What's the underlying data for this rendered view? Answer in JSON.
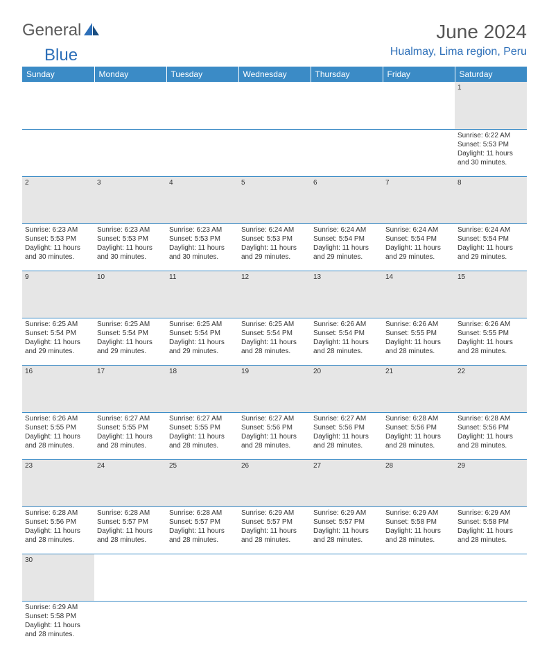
{
  "brand": {
    "part1": "General",
    "part2": "Blue"
  },
  "title": "June 2024",
  "location": "Hualmay, Lima region, Peru",
  "colors": {
    "header_bg": "#3b8bc6",
    "header_text": "#ffffff",
    "brand_gray": "#5a5a5a",
    "brand_blue": "#2d6fb8",
    "daynum_bg": "#e6e6e6",
    "border": "#3b8bc6",
    "text": "#333333"
  },
  "weekdays": [
    "Sunday",
    "Monday",
    "Tuesday",
    "Wednesday",
    "Thursday",
    "Friday",
    "Saturday"
  ],
  "weeks": [
    [
      null,
      null,
      null,
      null,
      null,
      null,
      {
        "n": "1",
        "sunrise": "Sunrise: 6:22 AM",
        "sunset": "Sunset: 5:53 PM",
        "day1": "Daylight: 11 hours",
        "day2": "and 30 minutes."
      }
    ],
    [
      {
        "n": "2",
        "sunrise": "Sunrise: 6:23 AM",
        "sunset": "Sunset: 5:53 PM",
        "day1": "Daylight: 11 hours",
        "day2": "and 30 minutes."
      },
      {
        "n": "3",
        "sunrise": "Sunrise: 6:23 AM",
        "sunset": "Sunset: 5:53 PM",
        "day1": "Daylight: 11 hours",
        "day2": "and 30 minutes."
      },
      {
        "n": "4",
        "sunrise": "Sunrise: 6:23 AM",
        "sunset": "Sunset: 5:53 PM",
        "day1": "Daylight: 11 hours",
        "day2": "and 30 minutes."
      },
      {
        "n": "5",
        "sunrise": "Sunrise: 6:24 AM",
        "sunset": "Sunset: 5:53 PM",
        "day1": "Daylight: 11 hours",
        "day2": "and 29 minutes."
      },
      {
        "n": "6",
        "sunrise": "Sunrise: 6:24 AM",
        "sunset": "Sunset: 5:54 PM",
        "day1": "Daylight: 11 hours",
        "day2": "and 29 minutes."
      },
      {
        "n": "7",
        "sunrise": "Sunrise: 6:24 AM",
        "sunset": "Sunset: 5:54 PM",
        "day1": "Daylight: 11 hours",
        "day2": "and 29 minutes."
      },
      {
        "n": "8",
        "sunrise": "Sunrise: 6:24 AM",
        "sunset": "Sunset: 5:54 PM",
        "day1": "Daylight: 11 hours",
        "day2": "and 29 minutes."
      }
    ],
    [
      {
        "n": "9",
        "sunrise": "Sunrise: 6:25 AM",
        "sunset": "Sunset: 5:54 PM",
        "day1": "Daylight: 11 hours",
        "day2": "and 29 minutes."
      },
      {
        "n": "10",
        "sunrise": "Sunrise: 6:25 AM",
        "sunset": "Sunset: 5:54 PM",
        "day1": "Daylight: 11 hours",
        "day2": "and 29 minutes."
      },
      {
        "n": "11",
        "sunrise": "Sunrise: 6:25 AM",
        "sunset": "Sunset: 5:54 PM",
        "day1": "Daylight: 11 hours",
        "day2": "and 29 minutes."
      },
      {
        "n": "12",
        "sunrise": "Sunrise: 6:25 AM",
        "sunset": "Sunset: 5:54 PM",
        "day1": "Daylight: 11 hours",
        "day2": "and 28 minutes."
      },
      {
        "n": "13",
        "sunrise": "Sunrise: 6:26 AM",
        "sunset": "Sunset: 5:54 PM",
        "day1": "Daylight: 11 hours",
        "day2": "and 28 minutes."
      },
      {
        "n": "14",
        "sunrise": "Sunrise: 6:26 AM",
        "sunset": "Sunset: 5:55 PM",
        "day1": "Daylight: 11 hours",
        "day2": "and 28 minutes."
      },
      {
        "n": "15",
        "sunrise": "Sunrise: 6:26 AM",
        "sunset": "Sunset: 5:55 PM",
        "day1": "Daylight: 11 hours",
        "day2": "and 28 minutes."
      }
    ],
    [
      {
        "n": "16",
        "sunrise": "Sunrise: 6:26 AM",
        "sunset": "Sunset: 5:55 PM",
        "day1": "Daylight: 11 hours",
        "day2": "and 28 minutes."
      },
      {
        "n": "17",
        "sunrise": "Sunrise: 6:27 AM",
        "sunset": "Sunset: 5:55 PM",
        "day1": "Daylight: 11 hours",
        "day2": "and 28 minutes."
      },
      {
        "n": "18",
        "sunrise": "Sunrise: 6:27 AM",
        "sunset": "Sunset: 5:55 PM",
        "day1": "Daylight: 11 hours",
        "day2": "and 28 minutes."
      },
      {
        "n": "19",
        "sunrise": "Sunrise: 6:27 AM",
        "sunset": "Sunset: 5:56 PM",
        "day1": "Daylight: 11 hours",
        "day2": "and 28 minutes."
      },
      {
        "n": "20",
        "sunrise": "Sunrise: 6:27 AM",
        "sunset": "Sunset: 5:56 PM",
        "day1": "Daylight: 11 hours",
        "day2": "and 28 minutes."
      },
      {
        "n": "21",
        "sunrise": "Sunrise: 6:28 AM",
        "sunset": "Sunset: 5:56 PM",
        "day1": "Daylight: 11 hours",
        "day2": "and 28 minutes."
      },
      {
        "n": "22",
        "sunrise": "Sunrise: 6:28 AM",
        "sunset": "Sunset: 5:56 PM",
        "day1": "Daylight: 11 hours",
        "day2": "and 28 minutes."
      }
    ],
    [
      {
        "n": "23",
        "sunrise": "Sunrise: 6:28 AM",
        "sunset": "Sunset: 5:56 PM",
        "day1": "Daylight: 11 hours",
        "day2": "and 28 minutes."
      },
      {
        "n": "24",
        "sunrise": "Sunrise: 6:28 AM",
        "sunset": "Sunset: 5:57 PM",
        "day1": "Daylight: 11 hours",
        "day2": "and 28 minutes."
      },
      {
        "n": "25",
        "sunrise": "Sunrise: 6:28 AM",
        "sunset": "Sunset: 5:57 PM",
        "day1": "Daylight: 11 hours",
        "day2": "and 28 minutes."
      },
      {
        "n": "26",
        "sunrise": "Sunrise: 6:29 AM",
        "sunset": "Sunset: 5:57 PM",
        "day1": "Daylight: 11 hours",
        "day2": "and 28 minutes."
      },
      {
        "n": "27",
        "sunrise": "Sunrise: 6:29 AM",
        "sunset": "Sunset: 5:57 PM",
        "day1": "Daylight: 11 hours",
        "day2": "and 28 minutes."
      },
      {
        "n": "28",
        "sunrise": "Sunrise: 6:29 AM",
        "sunset": "Sunset: 5:58 PM",
        "day1": "Daylight: 11 hours",
        "day2": "and 28 minutes."
      },
      {
        "n": "29",
        "sunrise": "Sunrise: 6:29 AM",
        "sunset": "Sunset: 5:58 PM",
        "day1": "Daylight: 11 hours",
        "day2": "and 28 minutes."
      }
    ],
    [
      {
        "n": "30",
        "sunrise": "Sunrise: 6:29 AM",
        "sunset": "Sunset: 5:58 PM",
        "day1": "Daylight: 11 hours",
        "day2": "and 28 minutes."
      },
      null,
      null,
      null,
      null,
      null,
      null
    ]
  ]
}
